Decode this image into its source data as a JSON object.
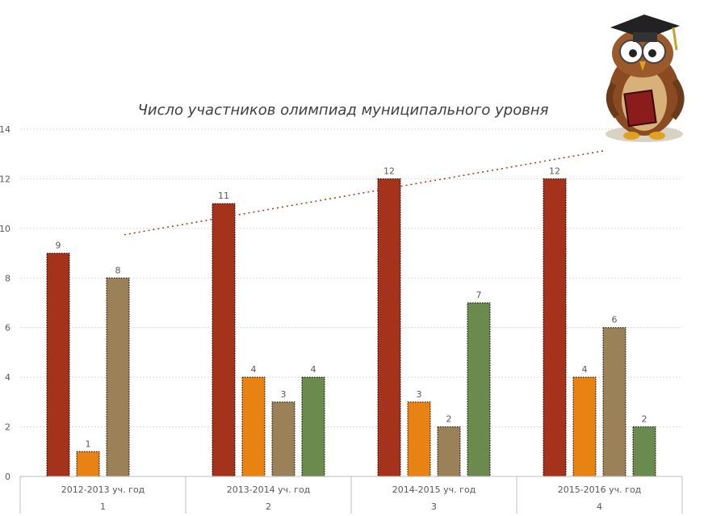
{
  "chart_data": {
    "type": "bar",
    "title": "Число участников олимпиад муниципального уровня",
    "categories": [
      "2012-2013 уч. год",
      "2013-2014 уч. год",
      "2014-2015 уч. год",
      "2015-2016 уч. год"
    ],
    "category_index": [
      "1",
      "2",
      "3",
      "4"
    ],
    "series": [
      {
        "values": [
          9,
          11,
          12,
          12
        ],
        "color": "#a5321a"
      },
      {
        "values": [
          1,
          4,
          3,
          4
        ],
        "color": "#e78213"
      },
      {
        "values": [
          8,
          3,
          2,
          6
        ],
        "color": "#9b8158"
      },
      {
        "values": [
          null,
          4,
          7,
          2
        ],
        "color": "#6b8a4e"
      }
    ],
    "ylim": [
      0,
      14
    ],
    "yticks": [
      "0",
      "2",
      "4",
      "6",
      "8",
      "10",
      "12",
      "14"
    ],
    "grid": true,
    "trendline": {
      "type": "linear",
      "style": "dotted",
      "color": "#a5321a",
      "series_index": 0
    }
  },
  "decoration": {
    "image": "owl-professor-with-book-icon"
  }
}
